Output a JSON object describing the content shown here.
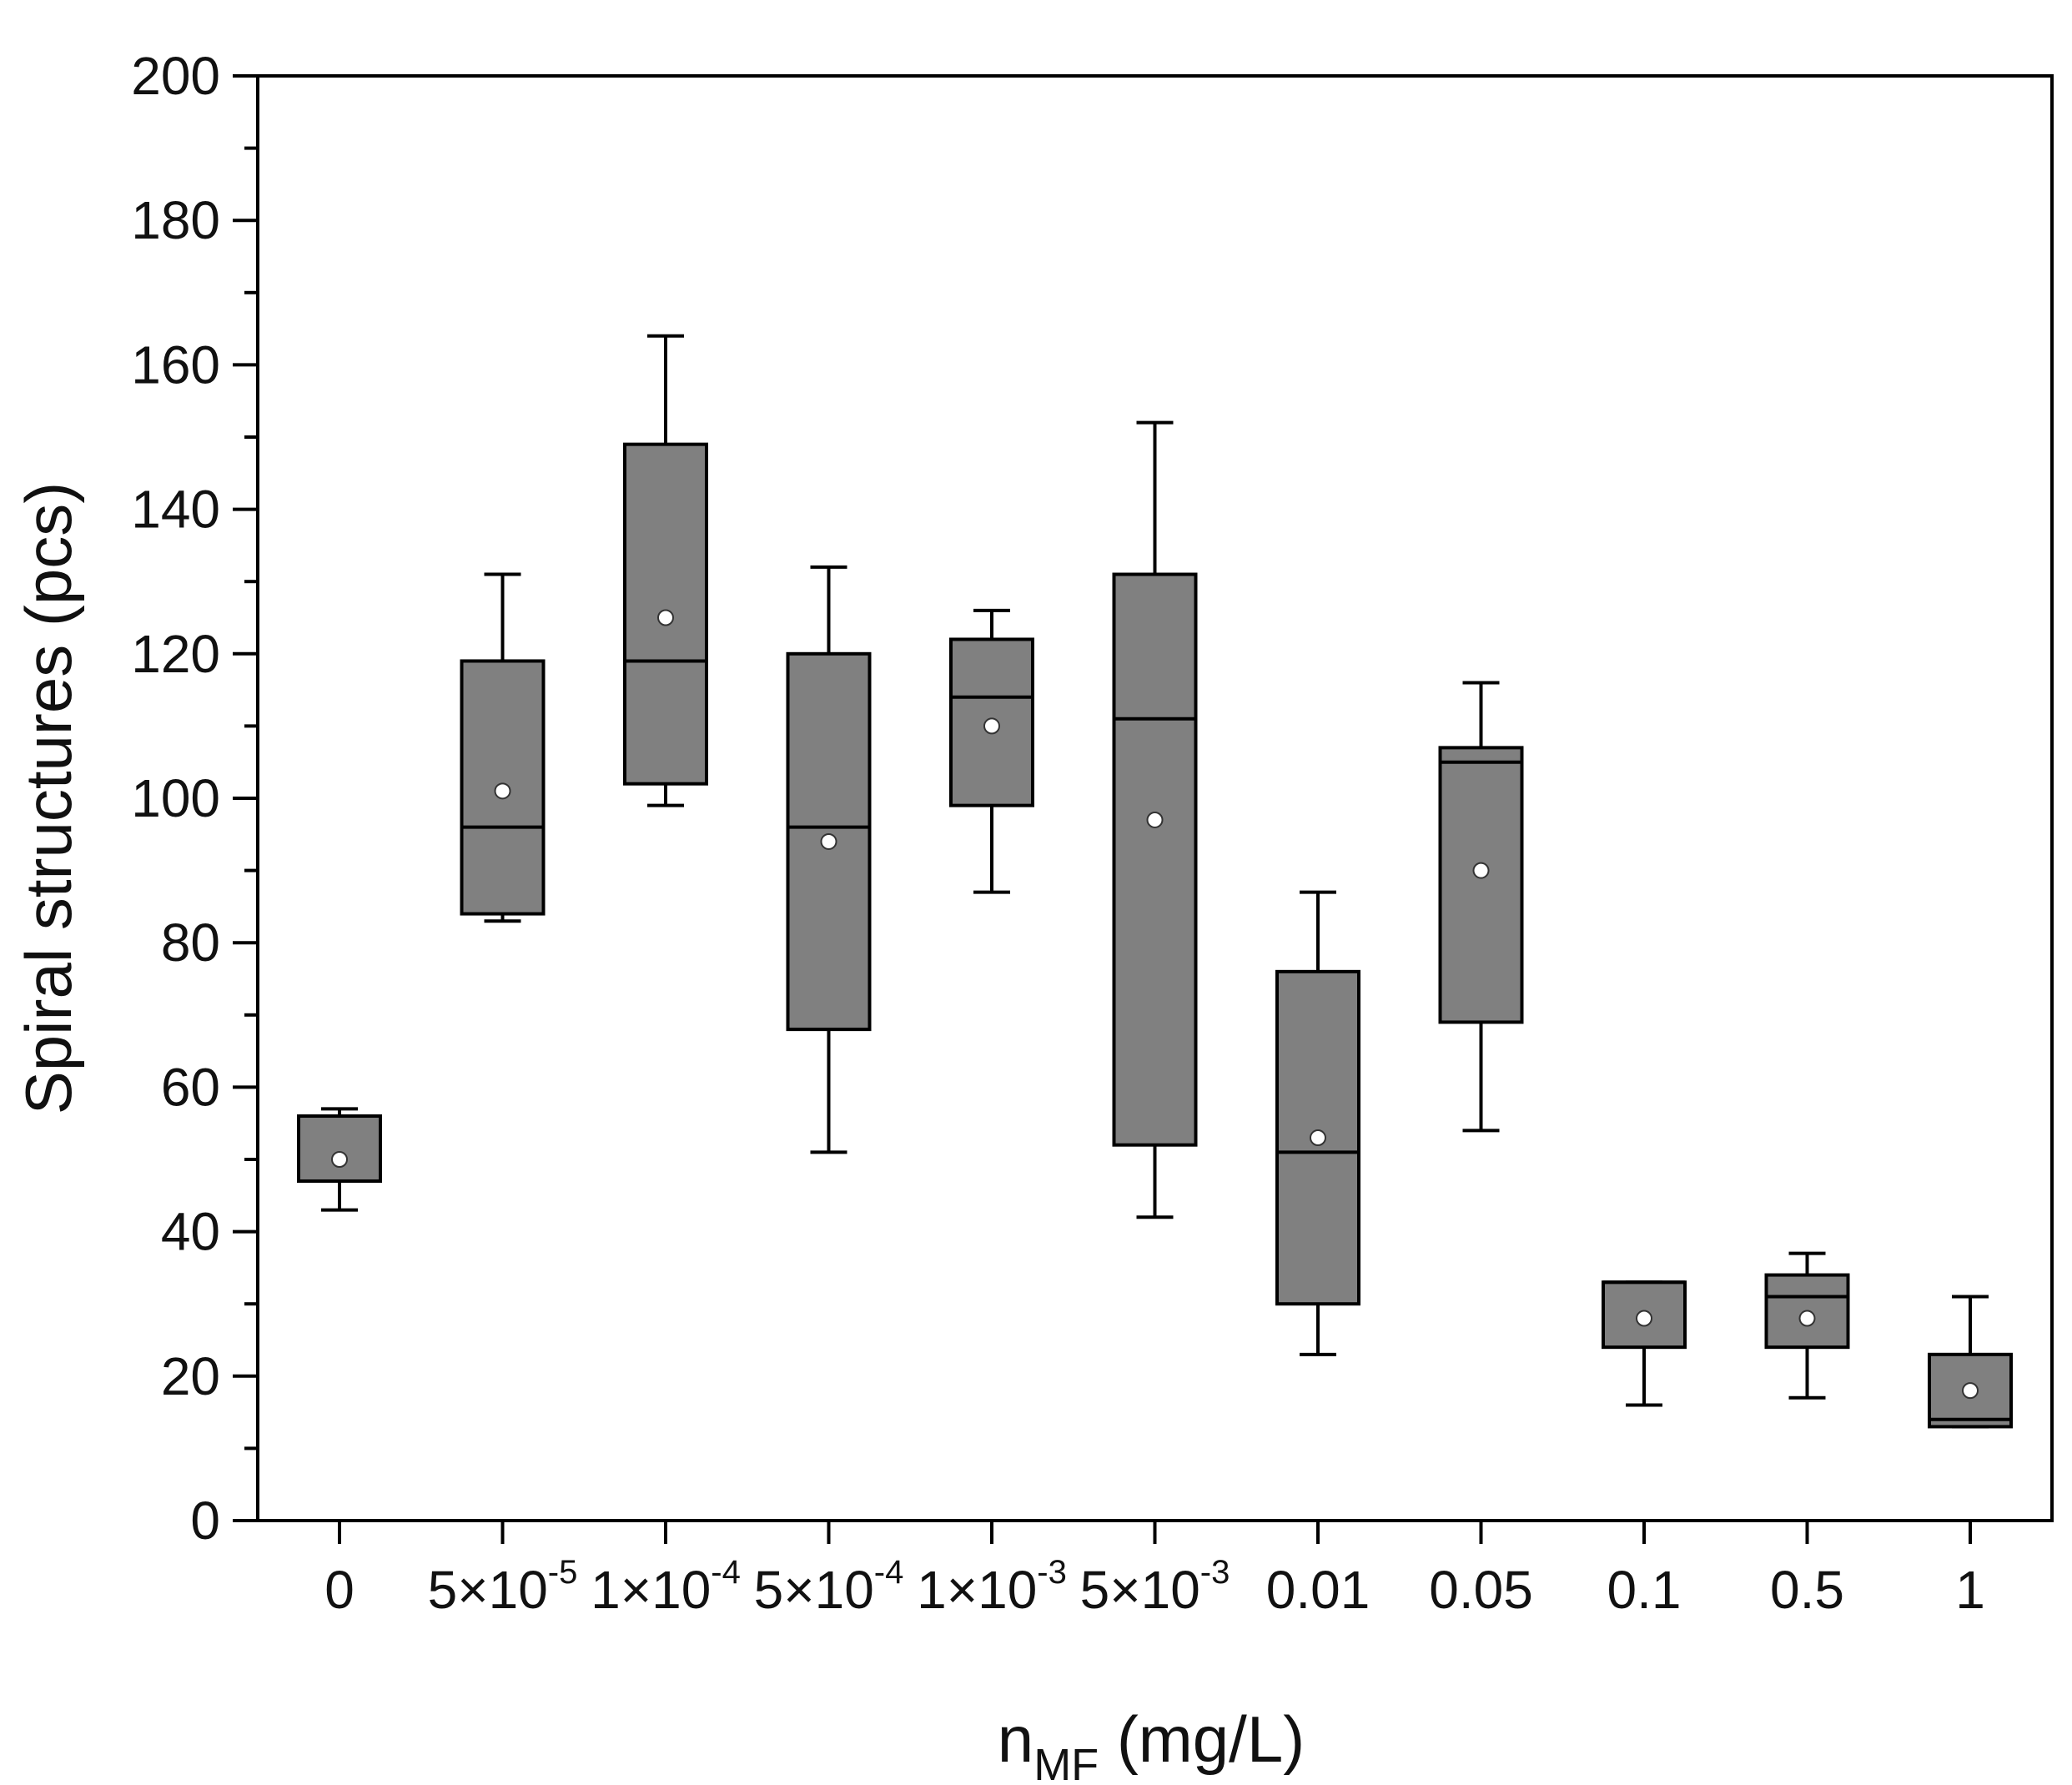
{
  "chart_data": {
    "type": "box",
    "title": "",
    "xlabel": {
      "main": "n",
      "sub": "MF",
      "unit": " (mg/L)"
    },
    "ylabel": "Spiral structures (pcs)",
    "ylim": [
      0,
      200
    ],
    "yticks": [
      "0",
      "20",
      "40",
      "60",
      "80",
      "100",
      "120",
      "140",
      "160",
      "180",
      "200"
    ],
    "box_color": "#808080",
    "categories": [
      {
        "base": "0",
        "exp": ""
      },
      {
        "base": "5×10",
        "exp": "-5"
      },
      {
        "base": "1×10",
        "exp": "-4"
      },
      {
        "base": "5×10",
        "exp": "-4"
      },
      {
        "base": "1×10",
        "exp": "-3"
      },
      {
        "base": "5×10",
        "exp": "-3"
      },
      {
        "base": "0.01",
        "exp": ""
      },
      {
        "base": "0.05",
        "exp": ""
      },
      {
        "base": "0.1",
        "exp": ""
      },
      {
        "base": "0.5",
        "exp": ""
      },
      {
        "base": "1",
        "exp": ""
      }
    ],
    "boxes": [
      {
        "whisker_low": 43,
        "q1": 47,
        "median": 56,
        "q3": 56,
        "whisker_high": 57,
        "mean": 50
      },
      {
        "whisker_low": 83,
        "q1": 84,
        "median": 96,
        "q3": 119,
        "whisker_high": 131,
        "mean": 101
      },
      {
        "whisker_low": 99,
        "q1": 102,
        "median": 119,
        "q3": 149,
        "whisker_high": 164,
        "mean": 125
      },
      {
        "whisker_low": 51,
        "q1": 68,
        "median": 96,
        "q3": 120,
        "whisker_high": 132,
        "mean": 94
      },
      {
        "whisker_low": 87,
        "q1": 99,
        "median": 114,
        "q3": 122,
        "whisker_high": 126,
        "mean": 110
      },
      {
        "whisker_low": 42,
        "q1": 52,
        "median": 111,
        "q3": 131,
        "whisker_high": 152,
        "mean": 97
      },
      {
        "whisker_low": 23,
        "q1": 30,
        "median": 51,
        "q3": 76,
        "whisker_high": 87,
        "mean": 53
      },
      {
        "whisker_low": 54,
        "q1": 69,
        "median": 105,
        "q3": 107,
        "whisker_high": 116,
        "mean": 90
      },
      {
        "whisker_low": 16,
        "q1": 24,
        "median": 33,
        "q3": 33,
        "whisker_high": 33,
        "mean": 28
      },
      {
        "whisker_low": 17,
        "q1": 24,
        "median": 31,
        "q3": 34,
        "whisker_high": 37,
        "mean": 28
      },
      {
        "whisker_low": 13,
        "q1": 13,
        "median": 14,
        "q3": 23,
        "whisker_high": 31,
        "mean": 18
      }
    ]
  }
}
